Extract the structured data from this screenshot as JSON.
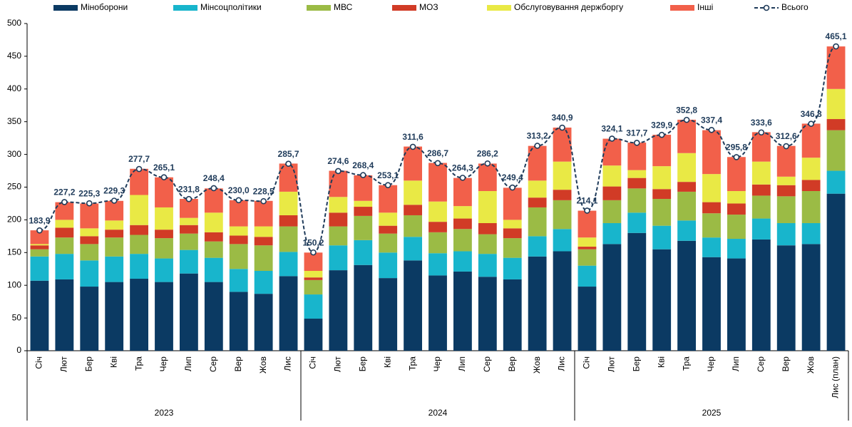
{
  "chart_data": {
    "type": "bar",
    "stacked": true,
    "groups": [
      {
        "name": "2023",
        "categories": [
          "Січ",
          "Лют",
          "Бер",
          "Кві",
          "Тра",
          "Чер",
          "Лип",
          "Сер",
          "Вер",
          "Жов",
          "Лис"
        ]
      },
      {
        "name": "2024",
        "categories": [
          "Січ",
          "Лют",
          "Бер",
          "Кві",
          "Тра",
          "Чер",
          "Лип",
          "Сер",
          "Вер",
          "Жов",
          "Лис"
        ]
      },
      {
        "name": "2025",
        "categories": [
          "Січ",
          "Лют",
          "Бер",
          "Кві",
          "Тра",
          "Чер",
          "Лип",
          "Сер",
          "Вер",
          "Жов",
          "Лис (план)"
        ]
      }
    ],
    "ylim": [
      0,
      500
    ],
    "yticks": [
      0,
      50,
      100,
      150,
      200,
      250,
      300,
      350,
      400,
      450,
      500
    ],
    "series": [
      {
        "name": "Міноборони",
        "color": "#0b3a63",
        "values": [
          107,
          109,
          98,
          105,
          110,
          105,
          118,
          105,
          90,
          87,
          114,
          49,
          123,
          131,
          111,
          138,
          115,
          121,
          113,
          109,
          144,
          152,
          98,
          163,
          180,
          155,
          168,
          143,
          141,
          170,
          161,
          163,
          240
        ]
      },
      {
        "name": "Мінсоцполітики",
        "color": "#18b5cc",
        "values": [
          37,
          39,
          40,
          39,
          38,
          36,
          36,
          37,
          35,
          35,
          37,
          37,
          38,
          38,
          39,
          36,
          34,
          31,
          35,
          33,
          31,
          34,
          32,
          32,
          31,
          36,
          31,
          30,
          30,
          32,
          34,
          32,
          35
        ]
      },
      {
        "name": "МВС",
        "color": "#9bbb45",
        "values": [
          11,
          25,
          25,
          29,
          29,
          31,
          25,
          25,
          38,
          39,
          39,
          22,
          29,
          37,
          29,
          33,
          32,
          34,
          30,
          30,
          44,
          44,
          25,
          35,
          37,
          41,
          44,
          37,
          37,
          35,
          41,
          49,
          62
        ]
      },
      {
        "name": "МОЗ",
        "color": "#d13b26",
        "values": [
          6,
          15,
          12,
          12,
          15,
          13,
          13,
          14,
          13,
          13,
          17,
          4,
          21,
          14,
          12,
          16,
          16,
          16,
          17,
          15,
          15,
          16,
          4,
          21,
          16,
          15,
          15,
          17,
          17,
          17,
          17,
          17,
          17
        ]
      },
      {
        "name": "Обслуговування держборгу",
        "color": "#e9e945",
        "values": [
          2,
          12,
          12,
          14,
          46,
          34,
          11,
          30,
          14,
          16,
          36,
          10,
          24,
          9,
          20,
          37,
          31,
          19,
          49,
          13,
          26,
          43,
          14,
          32,
          12,
          35,
          44,
          43,
          19,
          35,
          13,
          34,
          46
        ]
      },
      {
        "name": "Інші",
        "color": "#f2604a",
        "values": [
          21,
          27,
          38,
          30,
          40,
          46,
          29,
          37,
          40,
          39,
          43,
          28,
          40,
          39,
          42,
          52,
          59,
          43,
          42,
          49,
          53,
          52,
          41,
          41,
          42,
          48,
          51,
          67,
          52,
          45,
          47,
          52,
          65
        ]
      },
      {
        "name": "Всього",
        "type": "line",
        "color": "#1f3b5a",
        "values": [
          183.9,
          227.2,
          225.3,
          229.3,
          277.7,
          265.1,
          231.8,
          248.4,
          230.0,
          228.5,
          285.7,
          150.2,
          274.6,
          268.4,
          253.1,
          311.6,
          286.7,
          264.3,
          286.2,
          249.4,
          313.2,
          340.9,
          214.1,
          324.1,
          317.7,
          329.9,
          352.8,
          337.4,
          295.8,
          333.6,
          312.6,
          346.8,
          465.1
        ],
        "value_labels": [
          "183,9",
          "227,2",
          "225,3",
          "229,3",
          "277,7",
          "265,1",
          "231,8",
          "248,4",
          "230,0",
          "228,5",
          "285,7",
          "150,2",
          "274,6",
          "268,4",
          "253,1",
          "311,6",
          "286,7",
          "264,3",
          "286,2",
          "249,4",
          "313,2",
          "340,9",
          "214,1",
          "324,1",
          "317,7",
          "329,9",
          "352,8",
          "337,4",
          "295,8",
          "333,6",
          "312,6",
          "346,8",
          "465,1"
        ]
      }
    ]
  }
}
